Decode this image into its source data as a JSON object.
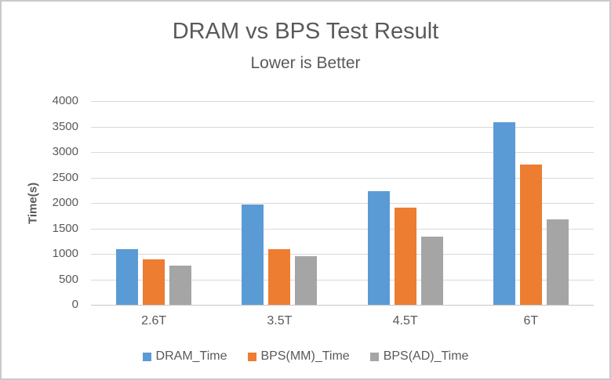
{
  "chart_data": {
    "type": "bar",
    "title": "DRAM vs BPS Test Result",
    "subtitle": "Lower is Better",
    "ylabel": "Time(s)",
    "xlabel": "",
    "categories": [
      "2.6T",
      "3.5T",
      "4.5T",
      "6T"
    ],
    "series": [
      {
        "name": "DRAM_Time",
        "color": "#5B9BD5",
        "values": [
          1090,
          1975,
          2230,
          3590
        ]
      },
      {
        "name": "BPS(MM)_Time",
        "color": "#ED7D31",
        "values": [
          885,
          1085,
          1910,
          2750
        ]
      },
      {
        "name": "BPS(AD)_Time",
        "color": "#A5A5A5",
        "values": [
          770,
          955,
          1340,
          1670
        ]
      }
    ],
    "ylim": [
      0,
      4000
    ],
    "yticks": [
      0,
      500,
      1000,
      1500,
      2000,
      2500,
      3000,
      3500,
      4000
    ],
    "grid": true,
    "legend_position": "bottom"
  },
  "colors": {
    "text": "#595959",
    "gridline": "#D9D9D9",
    "axis_line": "#C6C6C6",
    "frame_border": "#C9C9C9",
    "background": "#FFFFFF"
  }
}
